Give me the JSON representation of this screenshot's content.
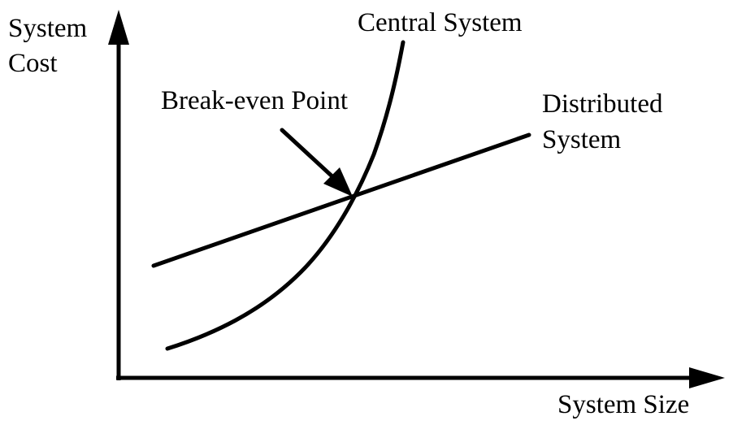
{
  "axes": {
    "y_label_line1": "System",
    "y_label_line2": "Cost",
    "x_label": "System Size"
  },
  "curves": {
    "central_label": "Central System",
    "distributed_label_line1": "Distributed",
    "distributed_label_line2": "System"
  },
  "annotation": {
    "break_even_label": "Break-even Point"
  },
  "colors": {
    "ink": "#000000",
    "background": "#ffffff"
  }
}
